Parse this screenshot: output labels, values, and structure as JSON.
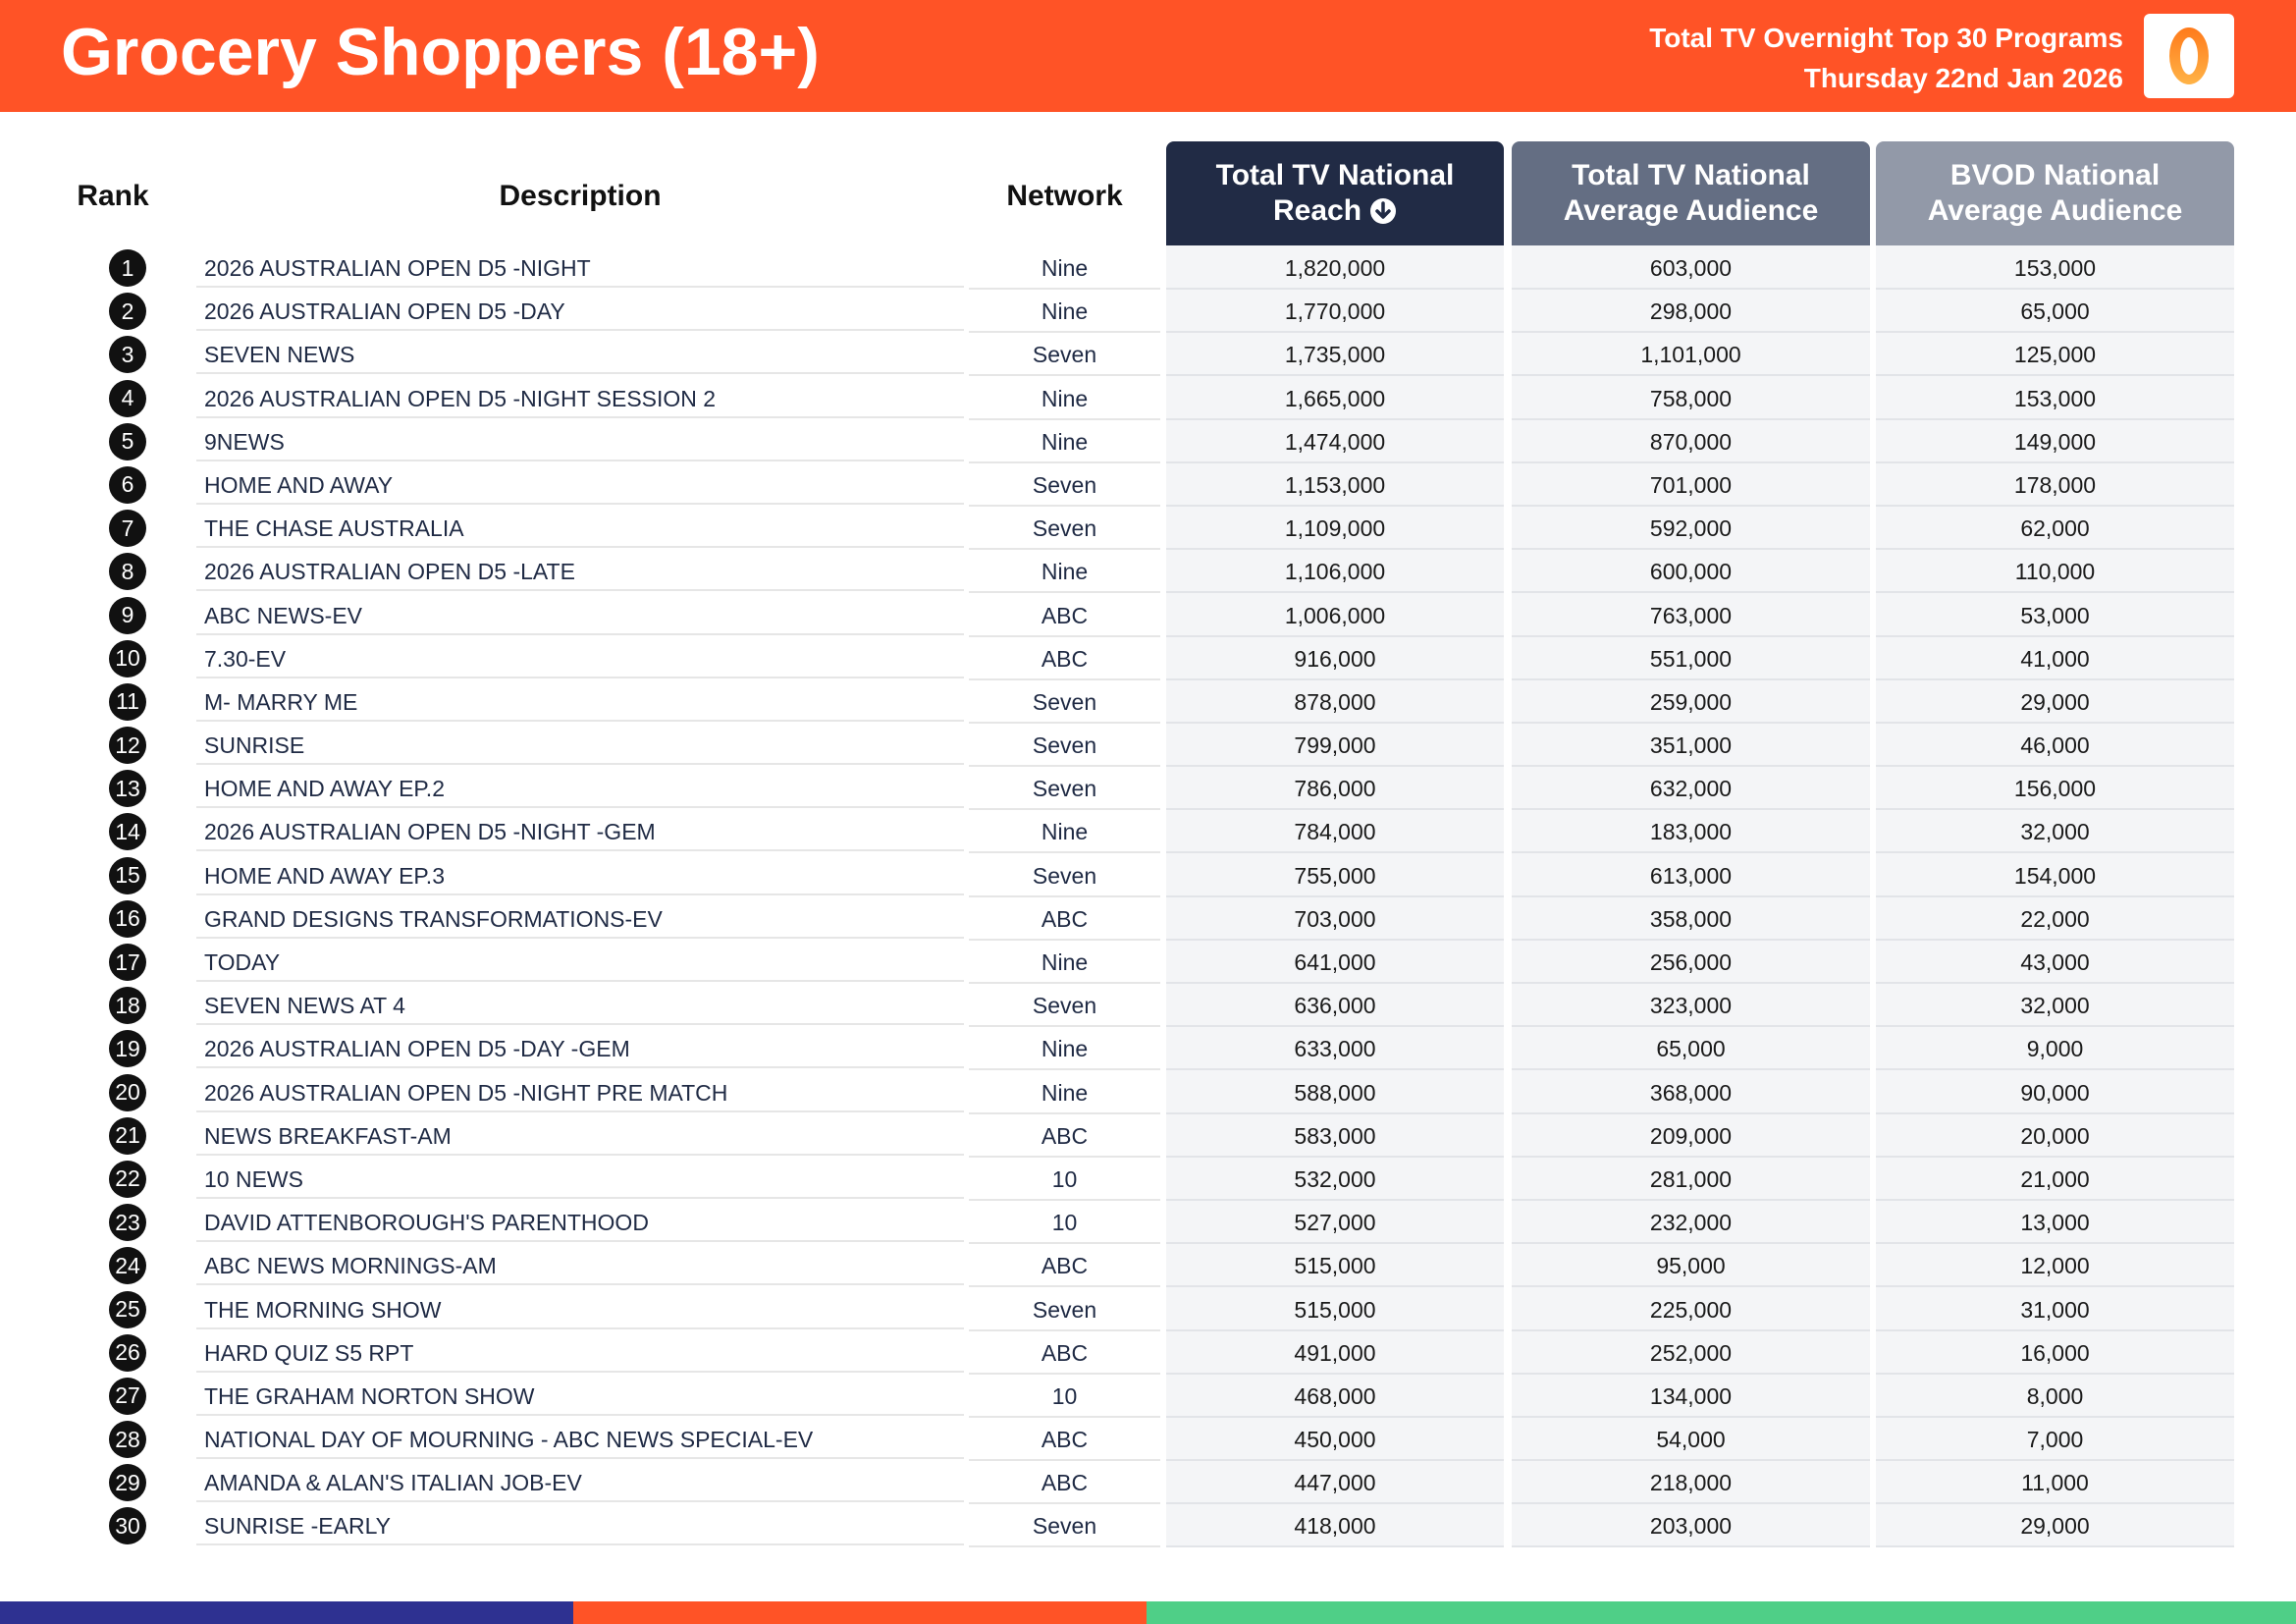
{
  "header": {
    "title": "Grocery Shoppers (18+)",
    "subtitle_line1": "Total TV Overnight Top 30 Programs",
    "subtitle_line2": "Thursday 22nd Jan 2026",
    "logo_glyph": "0",
    "logo_icon": "oztam-logo"
  },
  "table": {
    "headers": {
      "rank": "Rank",
      "description": "Description",
      "network": "Network",
      "reach_line1": "Total TV National",
      "reach_line2": "Reach",
      "reach_sort_icon": "sort-descending-icon",
      "avg_line1": "Total TV National",
      "avg_line2": "Average Audience",
      "bvod_line1": "BVOD National",
      "bvod_line2": "Average Audience"
    },
    "rows": [
      {
        "rank": "1",
        "description": "2026 AUSTRALIAN OPEN D5 -NIGHT",
        "network": "Nine",
        "reach": "1,820,000",
        "avg": "603,000",
        "bvod": "153,000"
      },
      {
        "rank": "2",
        "description": "2026 AUSTRALIAN OPEN D5 -DAY",
        "network": "Nine",
        "reach": "1,770,000",
        "avg": "298,000",
        "bvod": "65,000"
      },
      {
        "rank": "3",
        "description": "SEVEN NEWS",
        "network": "Seven",
        "reach": "1,735,000",
        "avg": "1,101,000",
        "bvod": "125,000"
      },
      {
        "rank": "4",
        "description": "2026 AUSTRALIAN OPEN D5 -NIGHT SESSION 2",
        "network": "Nine",
        "reach": "1,665,000",
        "avg": "758,000",
        "bvod": "153,000"
      },
      {
        "rank": "5",
        "description": "9NEWS",
        "network": "Nine",
        "reach": "1,474,000",
        "avg": "870,000",
        "bvod": "149,000"
      },
      {
        "rank": "6",
        "description": "HOME AND AWAY",
        "network": "Seven",
        "reach": "1,153,000",
        "avg": "701,000",
        "bvod": "178,000"
      },
      {
        "rank": "7",
        "description": "THE CHASE AUSTRALIA",
        "network": "Seven",
        "reach": "1,109,000",
        "avg": "592,000",
        "bvod": "62,000"
      },
      {
        "rank": "8",
        "description": "2026 AUSTRALIAN OPEN D5 -LATE",
        "network": "Nine",
        "reach": "1,106,000",
        "avg": "600,000",
        "bvod": "110,000"
      },
      {
        "rank": "9",
        "description": "ABC NEWS-EV",
        "network": "ABC",
        "reach": "1,006,000",
        "avg": "763,000",
        "bvod": "53,000"
      },
      {
        "rank": "10",
        "description": "7.30-EV",
        "network": "ABC",
        "reach": "916,000",
        "avg": "551,000",
        "bvod": "41,000"
      },
      {
        "rank": "11",
        "description": "M- MARRY ME",
        "network": "Seven",
        "reach": "878,000",
        "avg": "259,000",
        "bvod": "29,000"
      },
      {
        "rank": "12",
        "description": "SUNRISE",
        "network": "Seven",
        "reach": "799,000",
        "avg": "351,000",
        "bvod": "46,000"
      },
      {
        "rank": "13",
        "description": "HOME AND AWAY EP.2",
        "network": "Seven",
        "reach": "786,000",
        "avg": "632,000",
        "bvod": "156,000"
      },
      {
        "rank": "14",
        "description": "2026 AUSTRALIAN OPEN D5 -NIGHT -GEM",
        "network": "Nine",
        "reach": "784,000",
        "avg": "183,000",
        "bvod": "32,000"
      },
      {
        "rank": "15",
        "description": "HOME AND AWAY EP.3",
        "network": "Seven",
        "reach": "755,000",
        "avg": "613,000",
        "bvod": "154,000"
      },
      {
        "rank": "16",
        "description": "GRAND DESIGNS TRANSFORMATIONS-EV",
        "network": "ABC",
        "reach": "703,000",
        "avg": "358,000",
        "bvod": "22,000"
      },
      {
        "rank": "17",
        "description": "TODAY",
        "network": "Nine",
        "reach": "641,000",
        "avg": "256,000",
        "bvod": "43,000"
      },
      {
        "rank": "18",
        "description": "SEVEN NEWS AT 4",
        "network": "Seven",
        "reach": "636,000",
        "avg": "323,000",
        "bvod": "32,000"
      },
      {
        "rank": "19",
        "description": "2026 AUSTRALIAN OPEN D5 -DAY -GEM",
        "network": "Nine",
        "reach": "633,000",
        "avg": "65,000",
        "bvod": "9,000"
      },
      {
        "rank": "20",
        "description": "2026 AUSTRALIAN OPEN D5 -NIGHT PRE MATCH",
        "network": "Nine",
        "reach": "588,000",
        "avg": "368,000",
        "bvod": "90,000"
      },
      {
        "rank": "21",
        "description": "NEWS BREAKFAST-AM",
        "network": "ABC",
        "reach": "583,000",
        "avg": "209,000",
        "bvod": "20,000"
      },
      {
        "rank": "22",
        "description": "10 NEWS",
        "network": "10",
        "reach": "532,000",
        "avg": "281,000",
        "bvod": "21,000"
      },
      {
        "rank": "23",
        "description": "DAVID ATTENBOROUGH'S PARENTHOOD",
        "network": "10",
        "reach": "527,000",
        "avg": "232,000",
        "bvod": "13,000"
      },
      {
        "rank": "24",
        "description": "ABC NEWS MORNINGS-AM",
        "network": "ABC",
        "reach": "515,000",
        "avg": "95,000",
        "bvod": "12,000"
      },
      {
        "rank": "25",
        "description": "THE MORNING SHOW",
        "network": "Seven",
        "reach": "515,000",
        "avg": "225,000",
        "bvod": "31,000"
      },
      {
        "rank": "26",
        "description": "HARD QUIZ S5 RPT",
        "network": "ABC",
        "reach": "491,000",
        "avg": "252,000",
        "bvod": "16,000"
      },
      {
        "rank": "27",
        "description": "THE GRAHAM NORTON SHOW",
        "network": "10",
        "reach": "468,000",
        "avg": "134,000",
        "bvod": "8,000"
      },
      {
        "rank": "28",
        "description": "NATIONAL DAY OF MOURNING - ABC NEWS SPECIAL-EV",
        "network": "ABC",
        "reach": "450,000",
        "avg": "54,000",
        "bvod": "7,000"
      },
      {
        "rank": "29",
        "description": "AMANDA & ALAN'S ITALIAN JOB-EV",
        "network": "ABC",
        "reach": "447,000",
        "avg": "218,000",
        "bvod": "11,000"
      },
      {
        "rank": "30",
        "description": "SUNRISE -EARLY",
        "network": "Seven",
        "reach": "418,000",
        "avg": "203,000",
        "bvod": "29,000"
      }
    ]
  },
  "colors": {
    "brand_orange": "#ff5326",
    "reach_header": "#212b45",
    "avg_header": "#646e83",
    "bvod_header": "#9299a8",
    "footer_blue": "#2e3191",
    "footer_orange": "#ff5326",
    "footer_green": "#4fcf87"
  }
}
